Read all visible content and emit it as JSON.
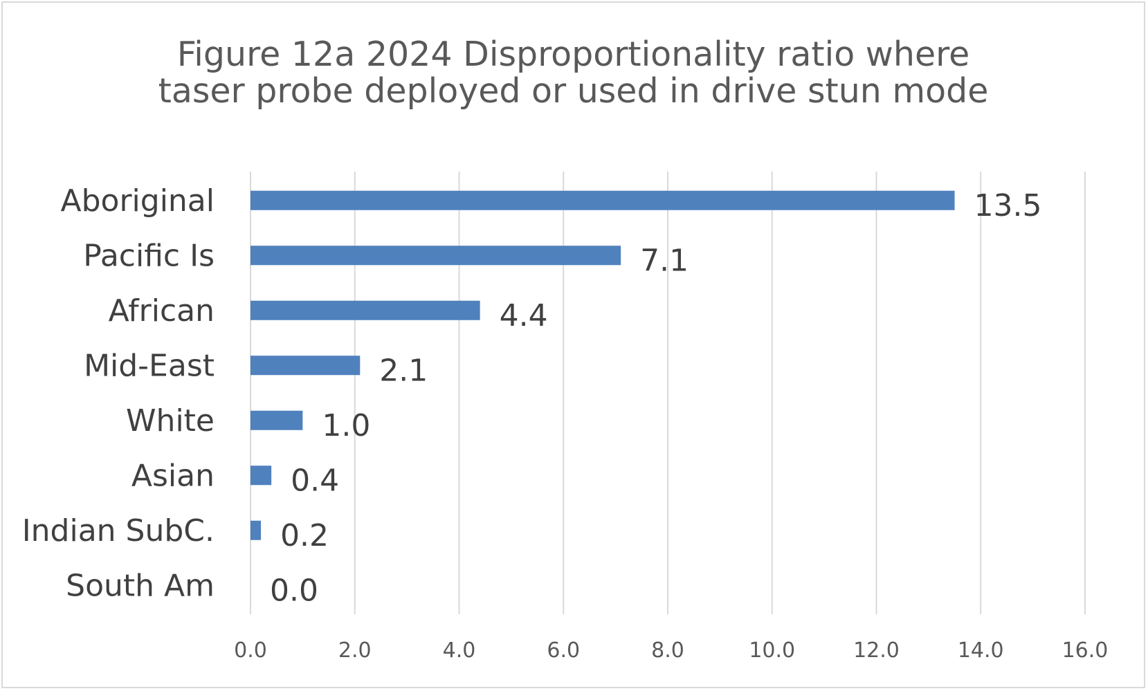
{
  "chart_data": {
    "type": "bar",
    "orientation": "horizontal",
    "title_lines": [
      "Figure 12a 2024 Disproportionality ratio where",
      "taser probe deployed or used in drive stun mode"
    ],
    "categories": [
      "Aboriginal",
      "Pacific Is",
      "African",
      "Mid-East",
      "White",
      "Asian",
      "Indian SubC.",
      "South Am"
    ],
    "values": [
      13.5,
      7.1,
      4.4,
      2.1,
      1.0,
      0.4,
      0.2,
      0.0
    ],
    "data_labels": [
      "13.5",
      "7.1",
      "4.4",
      "2.1",
      "1.0",
      "0.4",
      "0.2",
      "0.0"
    ],
    "x_ticks": [
      "0.0",
      "2.0",
      "4.0",
      "6.0",
      "8.0",
      "10.0",
      "12.0",
      "14.0",
      "16.0"
    ],
    "xlim": [
      0,
      16
    ],
    "grid": true,
    "xlabel": "",
    "ylabel": "",
    "bar_color": "#4f81bd",
    "grid_color": "#d9d9d9"
  }
}
